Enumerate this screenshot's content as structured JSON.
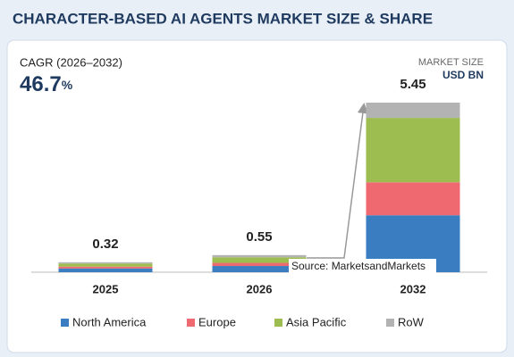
{
  "chart_data": {
    "type": "stacked-bar",
    "title": "CHARACTER-BASED AI AGENTS MARKET SIZE & SHARE",
    "cagr_label": "CAGR (2026–2032)",
    "cagr_value": "46.7",
    "cagr_unit": "%",
    "unit_label": "MARKET SIZE",
    "unit": "USD BN",
    "source": "Source: MarketsandMarkets",
    "categories": [
      "2025",
      "2026",
      "2032"
    ],
    "totals": [
      0.32,
      0.55,
      5.45
    ],
    "series": [
      {
        "name": "North America",
        "color": "#3a7dc0",
        "values": [
          0.12,
          0.2,
          1.83
        ]
      },
      {
        "name": "Europe",
        "color": "#ef6a70",
        "values": [
          0.06,
          0.1,
          1.06
        ]
      },
      {
        "name": "Asia Pacific",
        "color": "#9dbd50",
        "values": [
          0.1,
          0.18,
          2.07
        ]
      },
      {
        "name": "RoW",
        "color": "#b3b3b3",
        "values": [
          0.04,
          0.07,
          0.49
        ]
      }
    ]
  }
}
